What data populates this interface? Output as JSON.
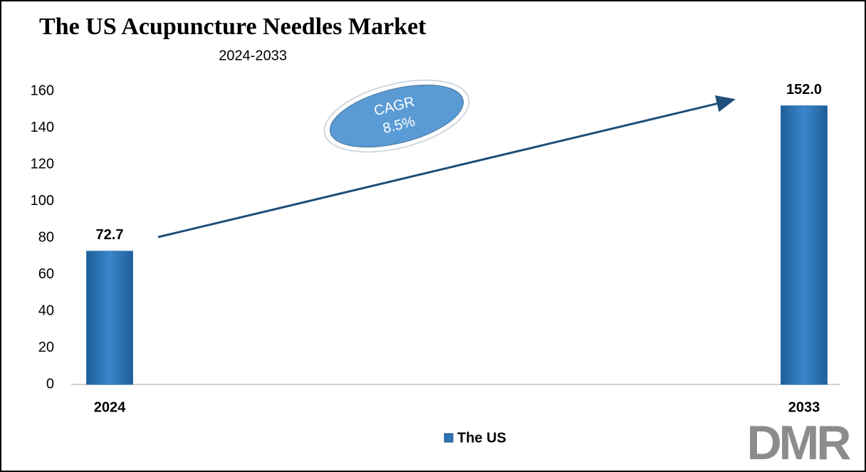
{
  "chart_data": {
    "type": "bar",
    "title": "The US Acupuncture Needles Market",
    "subtitle": "2024-2033",
    "categories": [
      "2024",
      "2033"
    ],
    "series": [
      {
        "name": "The US",
        "color": "#2e75b6",
        "values": [
          72.7,
          152
        ],
        "value_labels": [
          "72.7",
          "152.0"
        ]
      }
    ],
    "ylim": [
      0,
      160
    ],
    "yticks": [
      0,
      20,
      40,
      60,
      80,
      100,
      120,
      140,
      160
    ],
    "grid": false,
    "annotation": [
      "CAGR",
      "8.5%"
    ],
    "legend": "bottom",
    "logo": "DMR"
  }
}
